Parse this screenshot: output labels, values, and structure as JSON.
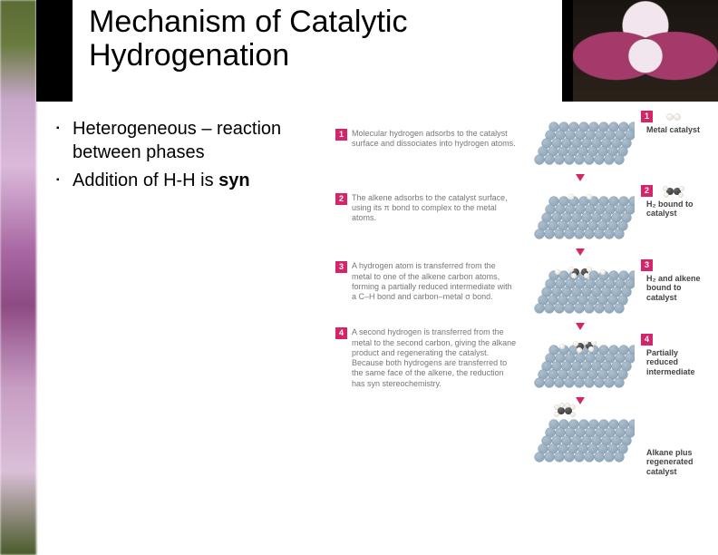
{
  "title": "Mechanism of Catalytic Hydrogenation",
  "bullets": [
    {
      "text": "Heterogeneous – reaction between phases"
    },
    {
      "text_pre": "Addition of H-H is ",
      "text_strong": "syn"
    }
  ],
  "captions": [
    {
      "n": "1",
      "text": "Molecular hydrogen adsorbs to the catalyst surface and dissociates into hydrogen atoms."
    },
    {
      "n": "2",
      "text": "The alkene adsorbs to the catalyst surface, using its π bond to complex to the metal atoms."
    },
    {
      "n": "3",
      "text": "A hydrogen atom is transferred from the metal to one of the alkene carbon atoms, forming a partially reduced intermediate with a C–H bond and carbon–metal σ bond."
    },
    {
      "n": "4",
      "text": "A second hydrogen is transferred from the metal to the second carbon, giving the alkane product and regenerating the catalyst. Because both hydrogens are transferred to the same face of the alkene, the reduction has syn stereochemistry."
    }
  ],
  "panels": [
    {
      "label": "Metal catalyst",
      "tag": "1",
      "molecule": "h2"
    },
    {
      "label": "H₂ bound to catalyst",
      "tag": "2",
      "molecule": "alkene",
      "surface": "2H"
    },
    {
      "label": "H₂ and alkene bound to catalyst",
      "tag": "3",
      "molecule": "none",
      "surface": "alkene2H"
    },
    {
      "label": "Partially reduced intermediate",
      "tag": "4",
      "molecule": "none",
      "surface": "partial"
    },
    {
      "label": "Alkane plus regenerated catalyst",
      "tag": "",
      "molecule": "alkane",
      "surface": "plain"
    }
  ],
  "colors": {
    "metal": "#8fa7ba",
    "metal_hi": "#aebfce",
    "metal_edge": "#6d8396",
    "carbon": "#3c3c3c",
    "hydrogen": "#e9e4d6",
    "hydrogen_edge": "#c9c3b0",
    "accent": "#d6246b",
    "text_gray": "#777777",
    "label": "#444444"
  }
}
